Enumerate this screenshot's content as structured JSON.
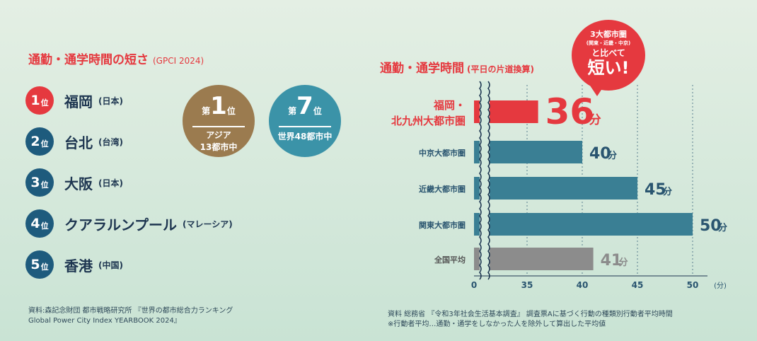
{
  "left": {
    "title": "通勤・通学時間の短さ",
    "title_sub": "(GPCI 2024)",
    "rankings": [
      {
        "rank": "1",
        "rank_unit": "位",
        "city": "福岡",
        "country": "(日本)"
      },
      {
        "rank": "2",
        "rank_unit": "位",
        "city": "台北",
        "country": "(台湾)"
      },
      {
        "rank": "3",
        "rank_unit": "位",
        "city": "大阪",
        "country": "(日本)"
      },
      {
        "rank": "4",
        "rank_unit": "位",
        "city": "クアラルンプール",
        "country": "(マレーシア)"
      },
      {
        "rank": "5",
        "rank_unit": "位",
        "city": "香港",
        "country": "(中国)"
      }
    ],
    "asia_badge": {
      "prefix": "第",
      "number": "1",
      "suffix": "位",
      "line1": "アジア",
      "line2": "13都市中"
    },
    "world_badge": {
      "prefix": "第",
      "number": "7",
      "suffix": "位",
      "line1": "世界48都市中"
    },
    "source_line1": "資料:森記念財団 都市戦略研究所 『世界の都市総合力ランキング",
    "source_line2": "Global Power City Index YEARBOOK 2024』"
  },
  "right": {
    "title": "通勤・通学時間",
    "title_sub": "(平日の片道換算)",
    "callout": {
      "line1": "3大都市圏",
      "line2": "(関東・近畿・中京)",
      "line3": "と比べて",
      "line4": "短い!"
    },
    "source_line1": "資料 総務省 『令和3年社会生活基本調査』 調査票Aに基づく行動の種類別行動者平均時間",
    "source_line2": "※行動者平均…通勤・通学をしなかった人を除外して算出した平均値"
  },
  "colors": {
    "accent": "#e5393f",
    "navy": "#1e5b7d",
    "teal": "#3a7f94",
    "gray": "#8c8c8c",
    "gold": "#9b7b4f",
    "cyan": "#3b93a8"
  },
  "chart_data": {
    "type": "bar",
    "orientation": "horizontal",
    "categories": [
      "福岡・北九州大都市圏",
      "中京大都市圏",
      "近畿大都市圏",
      "関東大都市圏",
      "全国平均"
    ],
    "category_lines": [
      [
        "福岡・",
        "北九州大都市圏"
      ],
      [
        "中京大都市圏"
      ],
      [
        "近畿大都市圏"
      ],
      [
        "関東大都市圏"
      ],
      [
        "全国平均"
      ]
    ],
    "values": [
      36,
      40,
      45,
      50,
      41
    ],
    "value_unit": "分",
    "xticks": [
      "0",
      "35",
      "40",
      "45",
      "50"
    ],
    "xunit": "(分)",
    "axis_break": true,
    "grid": true
  }
}
